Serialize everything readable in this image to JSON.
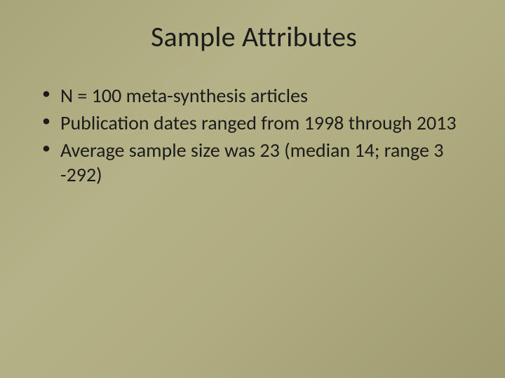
{
  "slide": {
    "title": "Sample Attributes",
    "bullets": [
      "N = 100 meta-synthesis articles",
      "Publication dates ranged from 1998 through 2013",
      "Average sample size was 23 (median 14; range 3 -292)"
    ],
    "background_gradient": [
      "#a8a57a",
      "#b5b288",
      "#b0ad80",
      "#9e9b6f"
    ],
    "title_fontsize": 40,
    "body_fontsize": 28,
    "text_color": "#1b1b1b",
    "font_family": "Calibri"
  }
}
